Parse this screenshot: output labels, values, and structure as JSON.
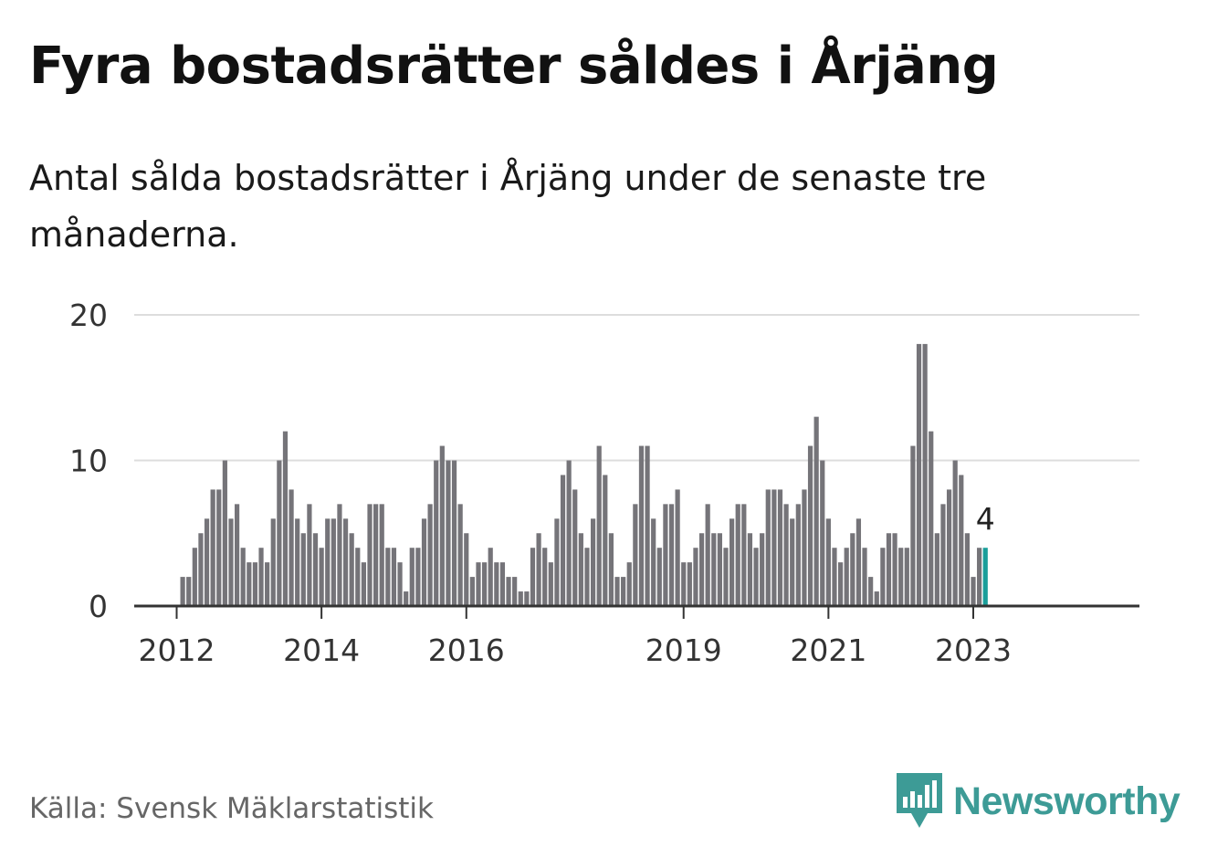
{
  "header": {
    "title": "Fyra bostadsrätter såldes i Årjäng",
    "subtitle": "Antal sålda bostadsrätter i Årjäng under de senaste tre månaderna."
  },
  "footer": {
    "source": "Källa: Svensk Mäklarstatistik",
    "brand": "Newsworthy"
  },
  "colors": {
    "bar": "#757479",
    "highlight": "#1a9e9a",
    "brand": "#3d9b96",
    "grid": "#dddddd",
    "axis": "#333333"
  },
  "chart_data": {
    "type": "bar",
    "ylim": [
      0,
      20
    ],
    "yticks": [
      0,
      10,
      20
    ],
    "grid": true,
    "xtick_labels": [
      "2012",
      "2014",
      "2016",
      "2019",
      "2021",
      "2023"
    ],
    "xtick_positions": [
      0,
      24,
      48,
      84,
      108,
      132
    ],
    "x_start_index": -1,
    "values": [
      2,
      2,
      4,
      5,
      6,
      8,
      8,
      10,
      6,
      7,
      4,
      3,
      3,
      4,
      3,
      6,
      10,
      12,
      8,
      6,
      5,
      7,
      5,
      4,
      6,
      6,
      7,
      6,
      5,
      4,
      3,
      7,
      7,
      7,
      4,
      4,
      3,
      1,
      4,
      4,
      6,
      7,
      10,
      11,
      10,
      10,
      7,
      5,
      2,
      3,
      3,
      4,
      3,
      3,
      2,
      2,
      1,
      1,
      4,
      5,
      4,
      3,
      6,
      9,
      10,
      8,
      5,
      4,
      6,
      11,
      9,
      5,
      2,
      2,
      3,
      7,
      11,
      11,
      6,
      4,
      7,
      7,
      8,
      3,
      3,
      4,
      5,
      7,
      5,
      5,
      4,
      6,
      7,
      7,
      5,
      4,
      5,
      8,
      8,
      8,
      7,
      6,
      7,
      8,
      11,
      13,
      10,
      6,
      4,
      3,
      4,
      5,
      6,
      4,
      2,
      1,
      4,
      5,
      5,
      4,
      4,
      11,
      18,
      18,
      12,
      5,
      7,
      8,
      10,
      9,
      5,
      2,
      4,
      4
    ],
    "highlight_last": true,
    "data_label": "4"
  }
}
